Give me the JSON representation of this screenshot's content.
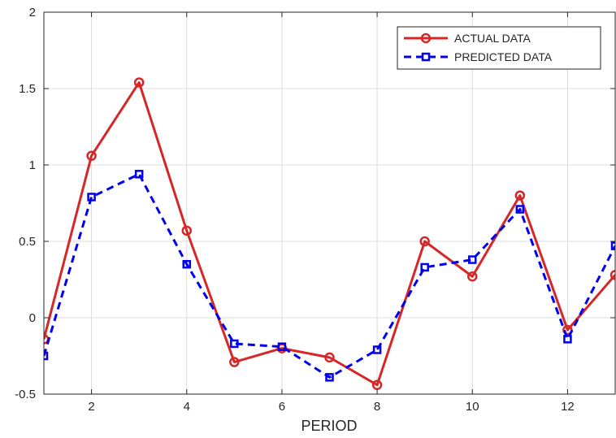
{
  "chart_data": {
    "type": "line",
    "title": "",
    "xlabel": "PERIOD",
    "ylabel": "",
    "x": [
      1,
      2,
      3,
      4,
      5,
      6,
      7,
      8,
      9,
      10,
      11,
      12,
      13
    ],
    "xlim": [
      1,
      13
    ],
    "ylim": [
      -0.5,
      2
    ],
    "xticks": [
      2,
      4,
      6,
      8,
      10,
      12
    ],
    "xtick_labels": [
      "2",
      "4",
      "6",
      "8",
      "10",
      "12"
    ],
    "yticks": [
      -0.5,
      0,
      0.5,
      1,
      1.5,
      2
    ],
    "ytick_labels": [
      "-0.5",
      "0",
      "0.5",
      "1",
      "1.5",
      "2"
    ],
    "grid": true,
    "legend_position": "top-right",
    "series": [
      {
        "name": "ACTUAL DATA",
        "values": [
          -0.14,
          1.06,
          1.54,
          0.57,
          -0.29,
          -0.2,
          -0.26,
          -0.44,
          0.5,
          0.27,
          0.8,
          -0.08,
          0.28
        ],
        "color": "#d62728",
        "line_style": "solid",
        "marker": "circle"
      },
      {
        "name": "PREDICTED DATA",
        "values": [
          -0.25,
          0.79,
          0.94,
          0.35,
          -0.17,
          -0.19,
          -0.39,
          -0.21,
          0.33,
          0.38,
          0.71,
          -0.14,
          0.47
        ],
        "color": "#0000ee",
        "line_style": "dashed",
        "marker": "square"
      }
    ]
  }
}
